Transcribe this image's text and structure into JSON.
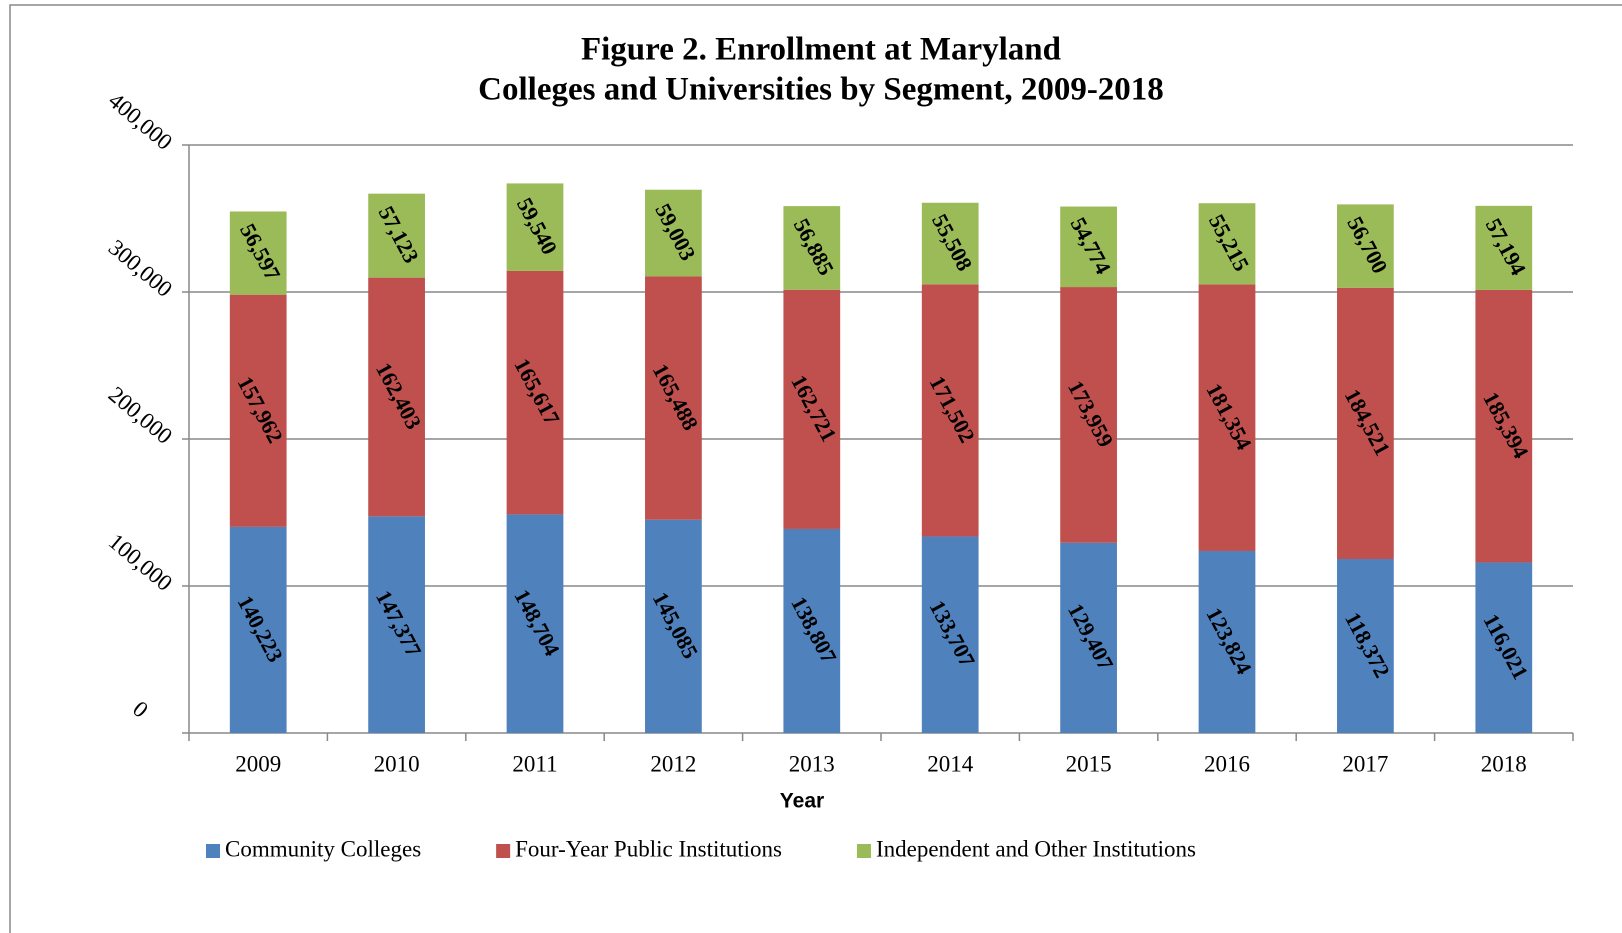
{
  "chart_data": {
    "type": "stacked_bar",
    "title": [
      "Figure 2. Enrollment at Maryland",
      "Colleges and Universities by Segment, 2009-2018"
    ],
    "xlabel": "Year",
    "categories": [
      "2009",
      "2010",
      "2011",
      "2012",
      "2013",
      "2014",
      "2015",
      "2016",
      "2017",
      "2018"
    ],
    "series": [
      {
        "name": "Community Colleges",
        "color": "#4f81bd",
        "values": [
          140223,
          147377,
          148704,
          145085,
          138807,
          133707,
          129407,
          123824,
          118372,
          116021
        ],
        "value_labels": [
          "140,223",
          "147,377",
          "148,704",
          "145,085",
          "138,807",
          "133,707",
          "129,407",
          "123,824",
          "118,372",
          "116,021"
        ]
      },
      {
        "name": "Four-Year Public Institutions",
        "color": "#c0504d",
        "values": [
          157962,
          162403,
          165617,
          165488,
          162721,
          171502,
          173959,
          181354,
          184521,
          185394
        ],
        "value_labels": [
          "157,962",
          "162,403",
          "165,617",
          "165,488",
          "162,721",
          "171,502",
          "173,959",
          "181,354",
          "184,521",
          "185,394"
        ]
      },
      {
        "name": "Independent and Other Institutions",
        "color": "#9bbb59",
        "values": [
          56597,
          57123,
          59540,
          59003,
          56885,
          55508,
          54774,
          55215,
          56700,
          57194
        ],
        "value_labels": [
          "56,597",
          "57,123",
          "59,540",
          "59,003",
          "56,885",
          "55,508",
          "54,774",
          "55,215",
          "56,700",
          "57,194"
        ]
      }
    ],
    "ylim": [
      0,
      400000
    ],
    "yticks": [
      0,
      {
        "value": 100000,
        "label": "100,000"
      },
      {
        "value": 200000,
        "label": "200,000"
      },
      {
        "value": 300000,
        "label": "300,000"
      },
      {
        "value": 400000,
        "label": "400,000"
      }
    ],
    "grid": true,
    "legend": "bottom"
  }
}
